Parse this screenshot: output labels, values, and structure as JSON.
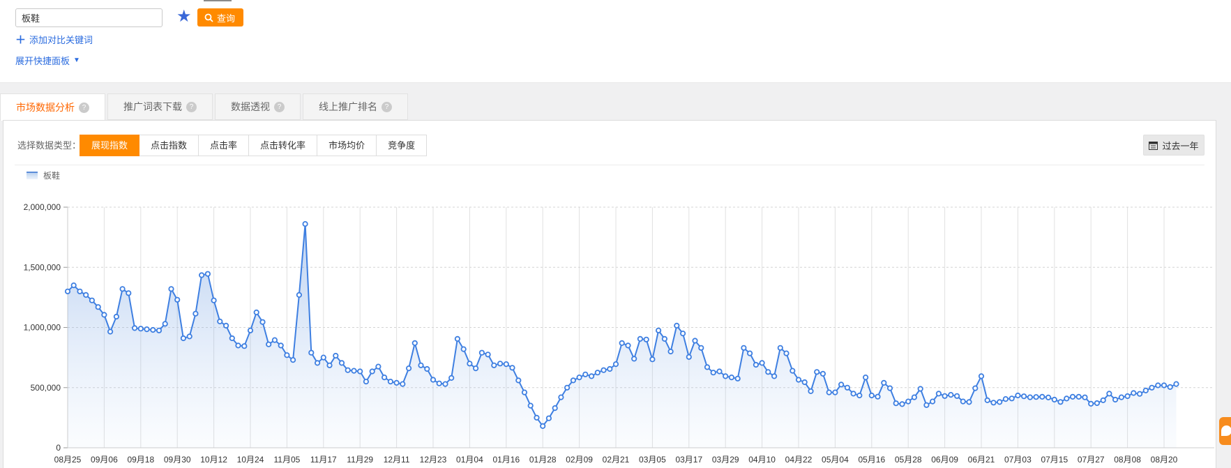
{
  "top_bar": {
    "keyword_input": {
      "value": "板鞋",
      "placeholder": ""
    },
    "query_button": "查询",
    "add_compare_link": "添加对比关键词",
    "expand_panel_link": "展开快捷面板"
  },
  "tabs": [
    {
      "label": "市场数据分析",
      "active": true
    },
    {
      "label": "推广词表下载",
      "active": false
    },
    {
      "label": "数据透视",
      "active": false
    },
    {
      "label": "线上推广排名",
      "active": false
    }
  ],
  "toolbar": {
    "data_type_label": "选择数据类型：",
    "data_types": [
      {
        "label": "展现指数",
        "active": true
      },
      {
        "label": "点击指数",
        "active": false
      },
      {
        "label": "点击率",
        "active": false
      },
      {
        "label": "点击转化率",
        "active": false
      },
      {
        "label": "市场均价",
        "active": false
      },
      {
        "label": "竞争度",
        "active": false
      }
    ],
    "date_range_button": "过去一年"
  },
  "legend": {
    "series_name": "板鞋"
  },
  "chart_data": {
    "type": "line",
    "title": "",
    "xlabel": "",
    "ylabel": "",
    "x_labels": [
      "08月25",
      "09月06",
      "09月18",
      "09月30",
      "10月12",
      "10月24",
      "11月05",
      "11月17",
      "11月29",
      "12月11",
      "12月23",
      "01月04",
      "01月16",
      "01月28",
      "02月09",
      "02月21",
      "03月05",
      "03月17",
      "03月29",
      "04月10",
      "04月22",
      "05月04",
      "05月16",
      "05月28",
      "06月09",
      "06月21",
      "07月03",
      "07月15",
      "07月27",
      "08月08",
      "08月20"
    ],
    "points_per_interval": 6,
    "y_ticks": [
      0,
      500000,
      1000000,
      1500000,
      2000000
    ],
    "ylim": [
      0,
      2000000
    ],
    "grid": true,
    "legend_position": "top-left",
    "line_color": "#3e7fe1",
    "point_fill": "#ffffff",
    "area_top_color": "rgba(94,145,221,0.42)",
    "area_bottom_color": "rgba(170,200,240,0.05)",
    "series": [
      {
        "name": "板鞋",
        "values": [
          1300000,
          1350000,
          1300000,
          1270000,
          1225000,
          1170000,
          1105000,
          965000,
          1090000,
          1320000,
          1285000,
          995000,
          990000,
          985000,
          980000,
          975000,
          1030000,
          1320000,
          1230000,
          910000,
          925000,
          1115000,
          1435000,
          1445000,
          1225000,
          1050000,
          1015000,
          910000,
          850000,
          845000,
          975000,
          1125000,
          1045000,
          860000,
          895000,
          850000,
          770000,
          730000,
          1270000,
          1860000,
          790000,
          705000,
          750000,
          685000,
          765000,
          705000,
          645000,
          640000,
          635000,
          550000,
          635000,
          675000,
          585000,
          550000,
          540000,
          530000,
          660000,
          870000,
          685000,
          655000,
          565000,
          535000,
          530000,
          580000,
          905000,
          820000,
          700000,
          660000,
          790000,
          775000,
          685000,
          700000,
          695000,
          665000,
          560000,
          460000,
          350000,
          250000,
          180000,
          245000,
          330000,
          420000,
          500000,
          560000,
          585000,
          610000,
          595000,
          625000,
          645000,
          655000,
          695000,
          870000,
          850000,
          740000,
          905000,
          900000,
          735000,
          975000,
          905000,
          800000,
          1015000,
          950000,
          755000,
          890000,
          830000,
          670000,
          625000,
          635000,
          595000,
          585000,
          575000,
          830000,
          785000,
          690000,
          705000,
          630000,
          595000,
          830000,
          785000,
          640000,
          565000,
          545000,
          470000,
          630000,
          615000,
          460000,
          460000,
          525000,
          500000,
          450000,
          435000,
          585000,
          435000,
          425000,
          540000,
          495000,
          370000,
          363000,
          385000,
          420000,
          490000,
          355000,
          385000,
          450000,
          430000,
          440000,
          430000,
          385000,
          380000,
          495000,
          595000,
          395000,
          375000,
          380000,
          405000,
          410000,
          435000,
          428000,
          420000,
          422000,
          424000,
          418000,
          400000,
          381000,
          409000,
          424000,
          424000,
          419000,
          366000,
          371000,
          395000,
          450000,
          400000,
          420000,
          429000,
          455000,
          448000,
          476000,
          500000,
          519000,
          519000,
          505000,
          530000
        ]
      }
    ]
  }
}
